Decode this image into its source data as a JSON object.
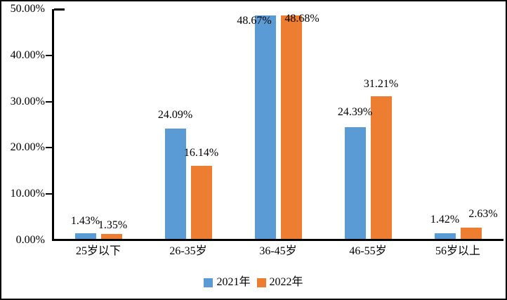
{
  "chart_data": {
    "type": "bar",
    "categories": [
      "25岁以下",
      "26-35岁",
      "36-45岁",
      "46-55岁",
      "56岁以上"
    ],
    "series": [
      {
        "name": "2021年",
        "color": "#5B9BD5",
        "values": [
          1.43,
          24.09,
          48.67,
          24.39,
          1.42
        ],
        "data_labels": [
          "1.43%",
          "24.09%",
          "48.67%",
          "24.39%",
          "1.42%"
        ]
      },
      {
        "name": "2022年",
        "color": "#ED7D31",
        "values": [
          1.35,
          16.14,
          48.68,
          31.21,
          2.63
        ],
        "data_labels": [
          "1.35%",
          "16.14%",
          "48.68%",
          "31.21%",
          "2.63%"
        ]
      }
    ],
    "y_axis": {
      "min": 0,
      "max": 50,
      "tick_labels": [
        "0.00%",
        "10.00%",
        "20.00%",
        "30.00%",
        "40.00%",
        "50.00%"
      ]
    },
    "grid": false,
    "legend_position": "bottom",
    "plot_background": "#ffffff",
    "frame_border_color": "#000000"
  }
}
